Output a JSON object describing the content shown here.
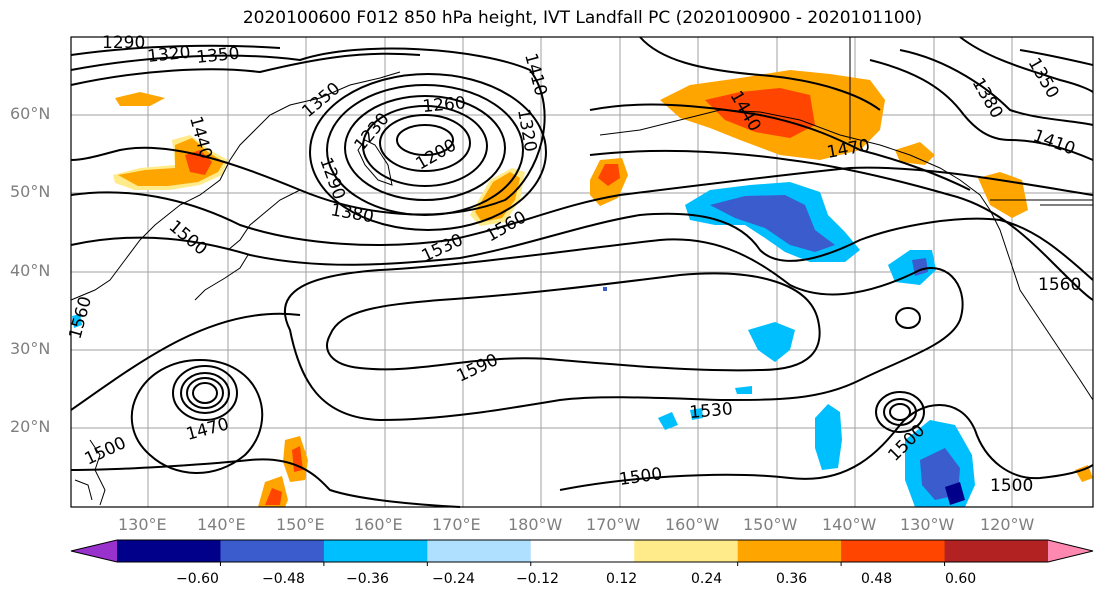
{
  "title": "2020100600 F012 850 hPa height, IVT Landfall PC (2020100900 - 2020101100)",
  "lat_ticks": [
    "60°N",
    "50°N",
    "40°N",
    "30°N",
    "20°N"
  ],
  "lon_ticks": [
    "130°E",
    "140°E",
    "150°E",
    "160°E",
    "170°E",
    "180°W",
    "170°W",
    "160°W",
    "150°W",
    "140°W",
    "130°W",
    "120°W"
  ],
  "colorbar": {
    "colors": [
      "#9932cc",
      "#00008b",
      "#3a5ccc",
      "#00bfff",
      "#b0e0ff",
      "#ffffff",
      "#ffeb8a",
      "#ffa500",
      "#ff4500",
      "#b22222",
      "#ff88b0"
    ],
    "ticks": [
      "−0.60",
      "−0.48",
      "−0.36",
      "−0.24",
      "−0.12",
      "0.12",
      "0.24",
      "0.36",
      "0.48",
      "0.60"
    ]
  },
  "contour_labels": [
    "1290",
    "1320",
    "1350",
    "1410",
    "1350",
    "1260",
    "1320",
    "1230",
    "1200",
    "1290",
    "1380",
    "1440",
    "1500",
    "1530",
    "1560",
    "1590",
    "1560",
    "1470",
    "1500",
    "1470",
    "1500",
    "1530",
    "1500",
    "1500",
    "1380",
    "1350",
    "1410",
    "1470",
    "1440",
    "1560",
    "1500"
  ]
}
